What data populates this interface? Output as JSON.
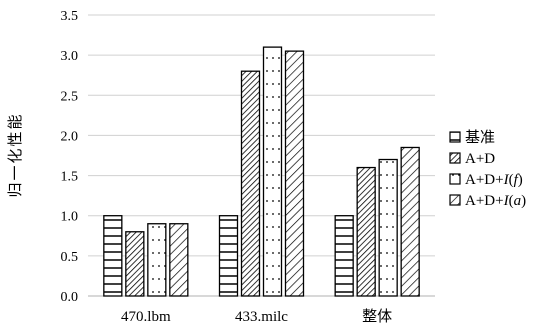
{
  "chart_data": {
    "type": "bar",
    "title": "",
    "xlabel": "",
    "ylabel": "归一化性能",
    "ylim": [
      0.0,
      3.5
    ],
    "yticks": [
      "0.0",
      "0.5",
      "1.0",
      "1.5",
      "2.0",
      "2.5",
      "3.0",
      "3.5"
    ],
    "categories": [
      "470.lbm",
      "433.milc",
      "整体"
    ],
    "grid": true,
    "legend_position": "right",
    "series": [
      {
        "name": "基准",
        "name_parts": [
          {
            "t": "基准",
            "i": false
          }
        ],
        "pattern": "horizontal-lines",
        "values": [
          1.0,
          1.0,
          1.0
        ]
      },
      {
        "name": "A+D",
        "name_parts": [
          {
            "t": "A+D",
            "i": false
          }
        ],
        "pattern": "dense-diagonal",
        "values": [
          0.8,
          2.8,
          1.6
        ]
      },
      {
        "name": "A+D+I(f)",
        "name_parts": [
          {
            "t": "A+D+",
            "i": false
          },
          {
            "t": "I",
            "i": true
          },
          {
            "t": "(",
            "i": false
          },
          {
            "t": "f",
            "i": true
          },
          {
            "t": ")",
            "i": false
          }
        ],
        "pattern": "dots",
        "values": [
          0.9,
          3.1,
          1.7
        ]
      },
      {
        "name": "A+D+I(a)",
        "name_parts": [
          {
            "t": "A+D+",
            "i": false
          },
          {
            "t": "I",
            "i": true
          },
          {
            "t": "(",
            "i": false
          },
          {
            "t": "a",
            "i": true
          },
          {
            "t": ")",
            "i": false
          }
        ],
        "pattern": "wide-diagonal",
        "values": [
          0.9,
          3.05,
          1.85
        ]
      }
    ]
  }
}
